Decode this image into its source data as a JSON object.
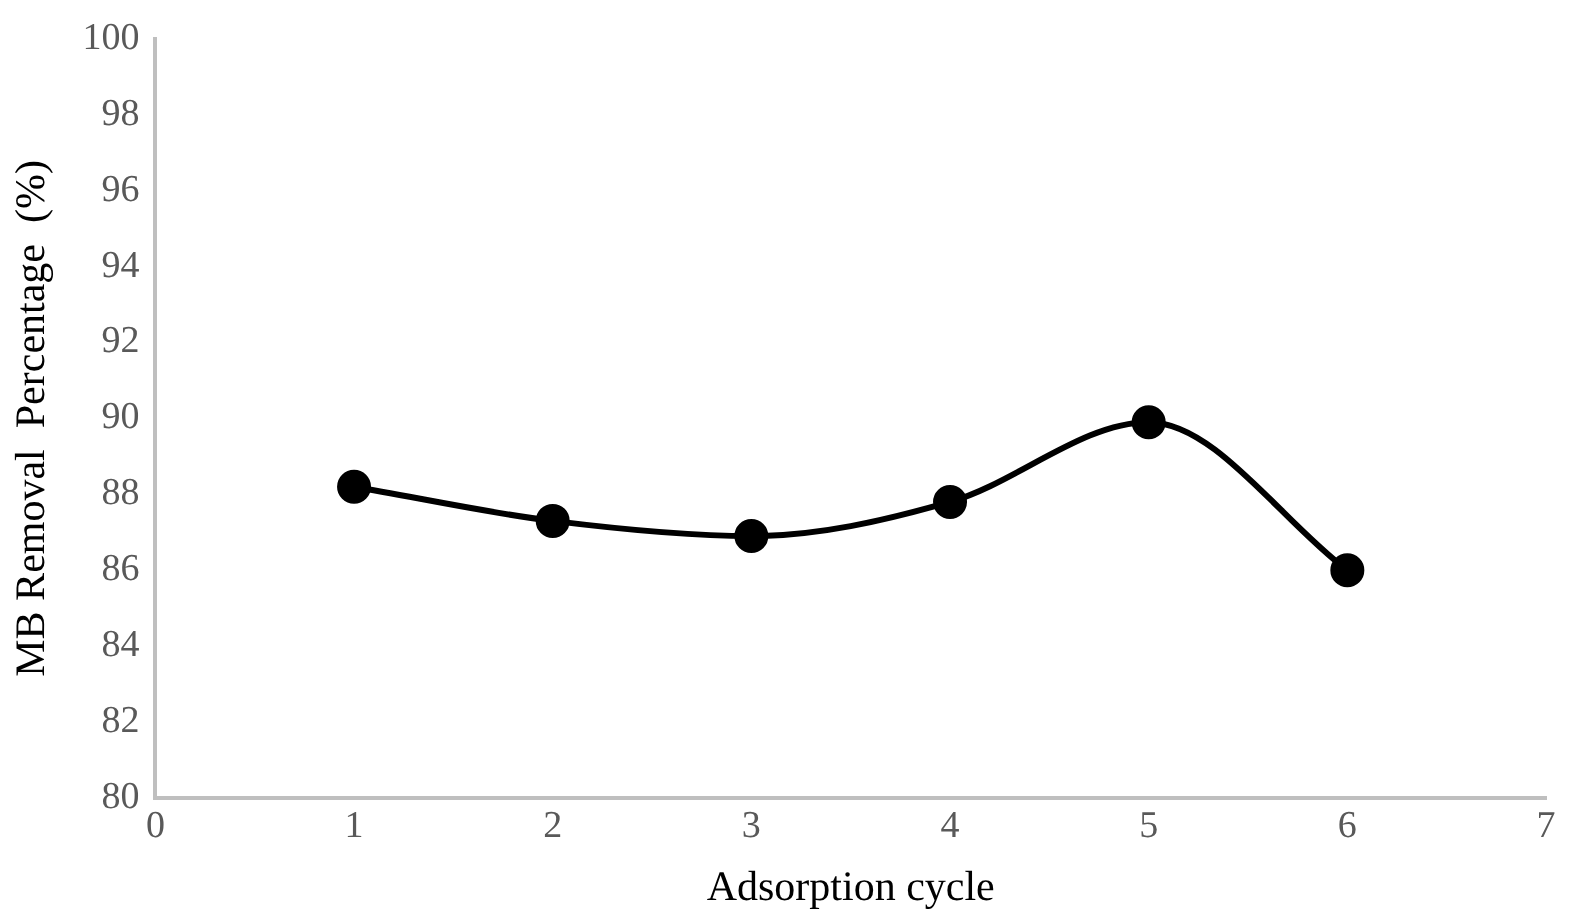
{
  "chart_data": {
    "type": "line",
    "xlabel": "Adsorption cycle",
    "ylabel": "MB Removal  Percentage  (%)",
    "x": [
      1,
      2,
      3,
      4,
      5,
      6
    ],
    "series": [
      {
        "color": "#000000",
        "values": [
          88.2,
          87.3,
          86.9,
          87.8,
          89.9,
          86.0
        ]
      }
    ],
    "xlim": [
      0,
      7
    ],
    "xticks": [
      0,
      1,
      2,
      3,
      4,
      5,
      6,
      7
    ],
    "ylim": [
      80,
      100
    ],
    "yticks": [
      80,
      82,
      84,
      86,
      88,
      90,
      92,
      94,
      96,
      98,
      100
    ],
    "grid": false,
    "legend": false,
    "marker": "circle",
    "line_style": "solid"
  }
}
